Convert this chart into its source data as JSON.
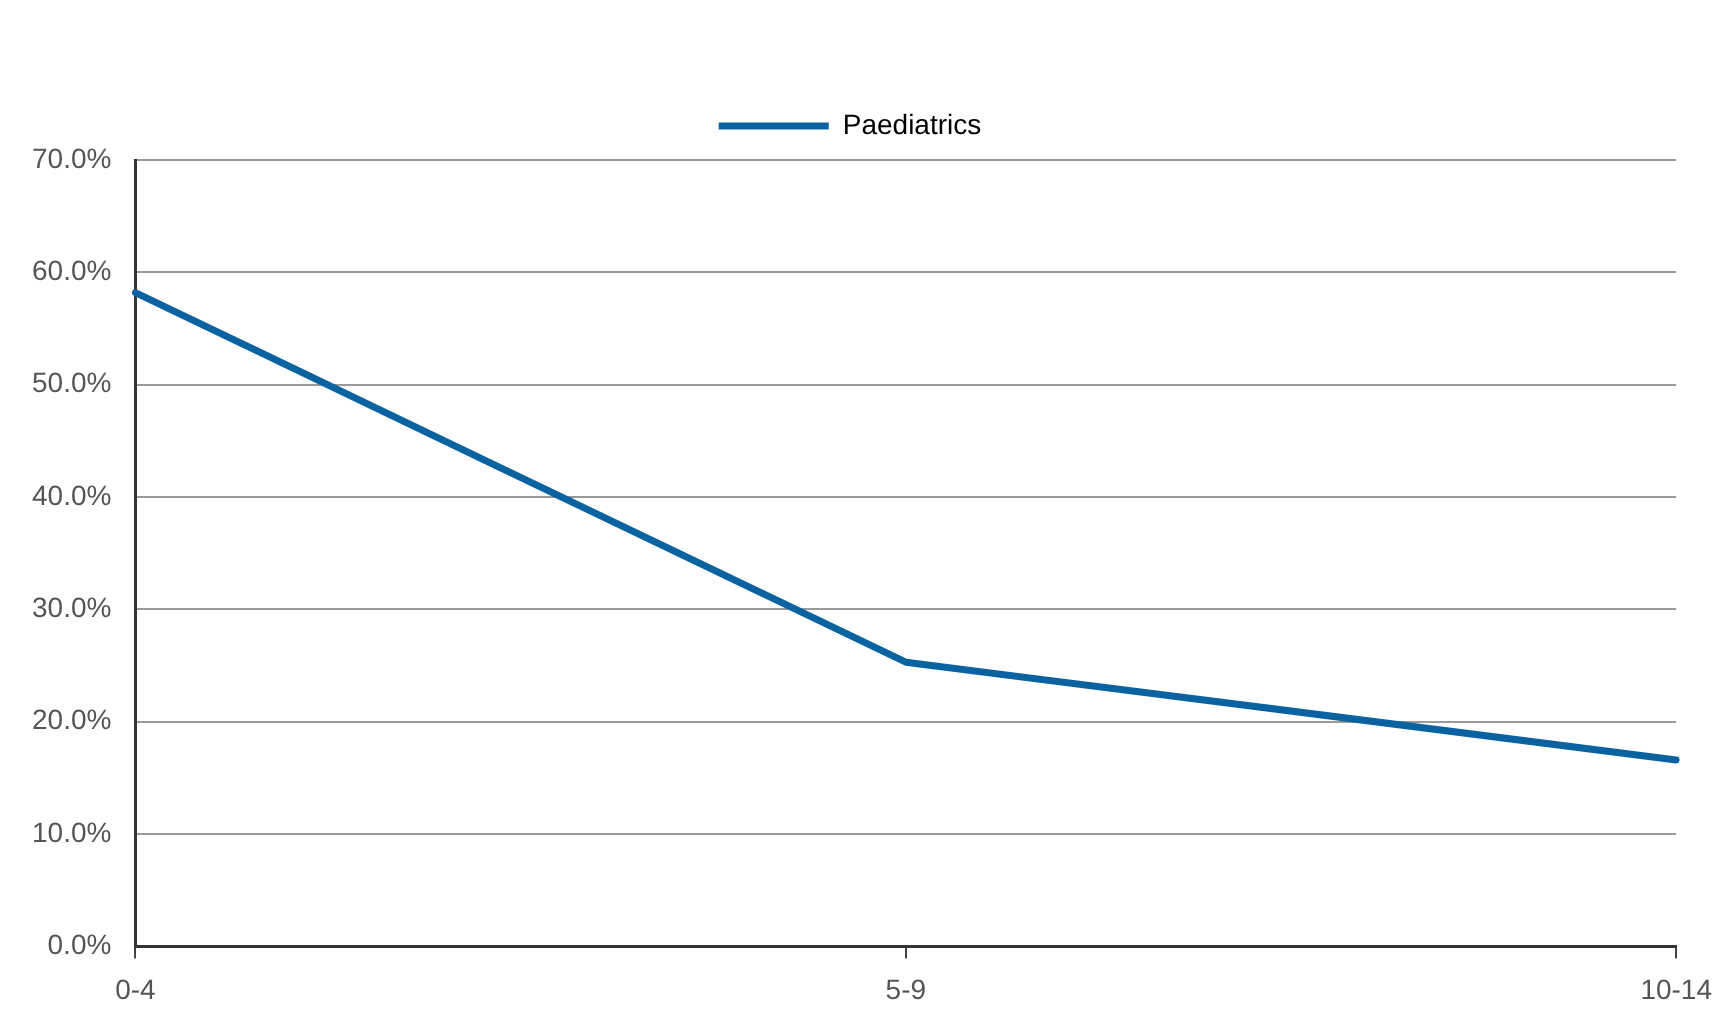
{
  "chart_data": {
    "type": "line",
    "categories": [
      "0-4",
      "5-9",
      "10-14"
    ],
    "series": [
      {
        "name": "Paediatrics",
        "color": "#0a62a0",
        "values": [
          58.2,
          25.3,
          16.6
        ]
      }
    ],
    "ylim": [
      0,
      70
    ],
    "yticks": [
      {
        "value": 0,
        "label": "0.0%"
      },
      {
        "value": 10,
        "label": "10.0%"
      },
      {
        "value": 20,
        "label": "20.0%"
      },
      {
        "value": 30,
        "label": "30.0%"
      },
      {
        "value": 40,
        "label": "40.0%"
      },
      {
        "value": 50,
        "label": "50.0%"
      },
      {
        "value": 60,
        "label": "60.0%"
      },
      {
        "value": 70,
        "label": "70.0%"
      }
    ],
    "grid": "y",
    "legend": "top",
    "marker": "none",
    "line_style": "solid"
  }
}
